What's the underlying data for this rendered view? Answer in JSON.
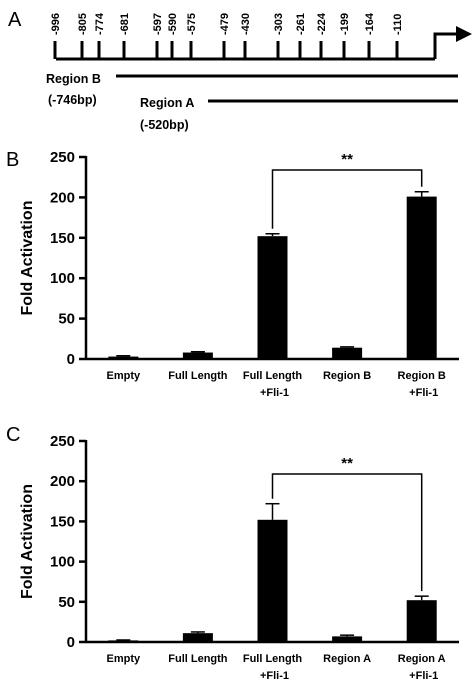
{
  "panels": {
    "a": "A",
    "b": "B",
    "c": "C"
  },
  "promoter_map": {
    "positions": [
      "-996",
      "-805",
      "-774",
      "-681",
      "-597",
      "-590",
      "-575",
      "-479",
      "-430",
      "-303",
      "-261",
      "-224",
      "-199",
      "-164",
      "-110"
    ],
    "region_b": {
      "name": "Region B",
      "length": "(-746bp)"
    },
    "region_a": {
      "name": "Region A",
      "length": "(-520bp)"
    }
  },
  "chart_data": [
    {
      "type": "bar",
      "panel": "B",
      "ylabel": "Fold Activation",
      "ylim": [
        0,
        250
      ],
      "yticks": [
        0,
        50,
        100,
        150,
        200,
        250
      ],
      "categories": [
        [
          "Empty"
        ],
        [
          "Full Length"
        ],
        [
          "Full Length",
          "+Fli-1"
        ],
        [
          "Region B"
        ],
        [
          "Region B",
          "+Fli-1"
        ]
      ],
      "values": [
        3,
        8,
        152,
        14,
        201
      ],
      "errors": [
        1,
        1,
        3,
        1,
        6
      ],
      "significance": {
        "label": "**",
        "from": 2,
        "to": 4
      },
      "color": "#000000"
    },
    {
      "type": "bar",
      "panel": "C",
      "ylabel": "Fold Activation",
      "ylim": [
        0,
        250
      ],
      "yticks": [
        0,
        50,
        100,
        150,
        200,
        250
      ],
      "categories": [
        [
          "Empty"
        ],
        [
          "Full Length"
        ],
        [
          "Full Length",
          "+Fli-1"
        ],
        [
          "Region A"
        ],
        [
          "Region A",
          "+Fli-1"
        ]
      ],
      "values": [
        2,
        11,
        152,
        7,
        52
      ],
      "errors": [
        0.5,
        1.5,
        20,
        1.5,
        5
      ],
      "significance": {
        "label": "**",
        "from": 2,
        "to": 4
      },
      "color": "#000000"
    }
  ]
}
